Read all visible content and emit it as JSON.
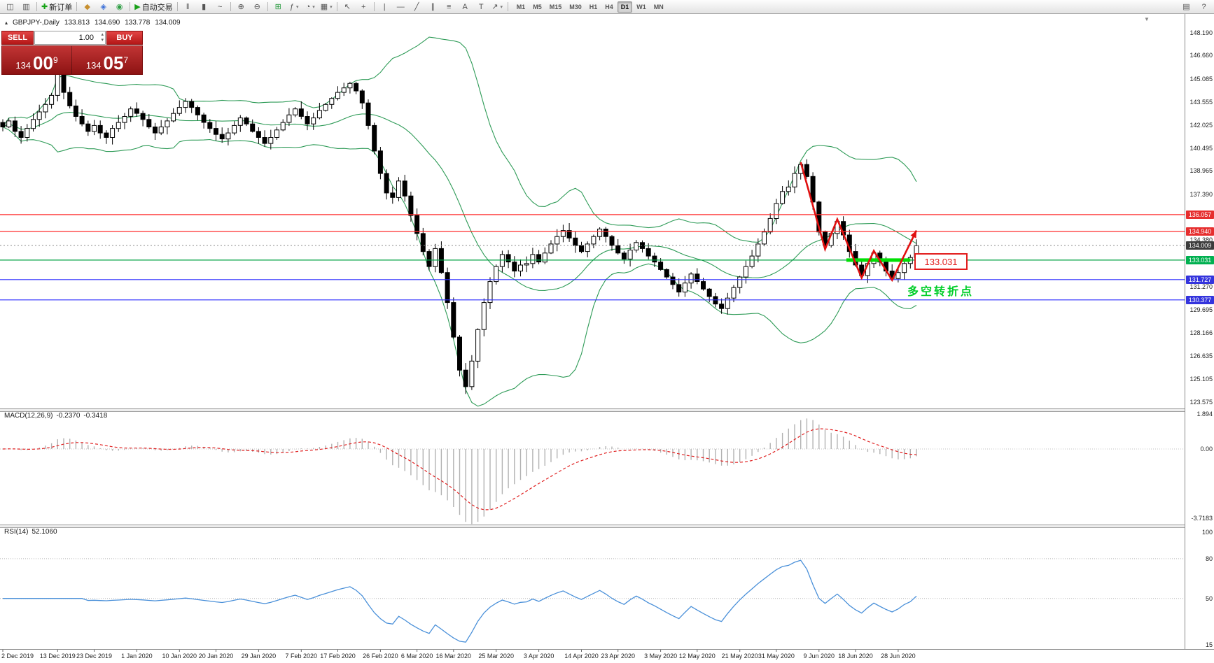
{
  "toolbar": {
    "left_buttons": [
      {
        "name": "new-chart-button",
        "glyph": "◫"
      },
      {
        "name": "chart-profiles-button",
        "glyph": "▥"
      },
      {
        "sep": true
      },
      {
        "name": "new-order-button",
        "glyph": "✚",
        "glyph_color": "#17a317",
        "label": "新订单"
      },
      {
        "sep": true
      },
      {
        "name": "market-watch-button",
        "glyph": "◆",
        "glyph_color": "#c78f2f"
      },
      {
        "name": "data-window-button",
        "glyph": "◈",
        "glyph_color": "#3a6fd8"
      },
      {
        "name": "navigator-button",
        "glyph": "◉",
        "glyph_color": "#2e9e44"
      },
      {
        "sep": true
      },
      {
        "name": "autotrading-button",
        "glyph": "▶",
        "glyph_color": "#18a018",
        "label": "自动交易"
      },
      {
        "sep": true
      },
      {
        "name": "bar-chart-button",
        "glyph": "‖"
      },
      {
        "name": "candlestick-chart-button",
        "glyph": "▮"
      },
      {
        "name": "line-chart-button",
        "glyph": "~"
      },
      {
        "sep": true
      },
      {
        "name": "zoom-in-button",
        "glyph": "⊕"
      },
      {
        "name": "zoom-out-button",
        "glyph": "⊖"
      },
      {
        "sep": true
      },
      {
        "name": "tile-windows-button",
        "glyph": "⊞",
        "glyph_color": "#2e9e44"
      },
      {
        "name": "indicators-button",
        "glyph": "ƒ",
        "dropdown": true
      },
      {
        "name": "periods-button",
        "glyph": "◔",
        "dropdown": true
      },
      {
        "name": "templates-button",
        "glyph": "▦",
        "dropdown": true
      },
      {
        "sep": true
      },
      {
        "name": "cursor-button",
        "glyph": "↖"
      },
      {
        "name": "crosshair-button",
        "glyph": "+"
      },
      {
        "sep": true
      },
      {
        "name": "vertical-line-button",
        "glyph": "|"
      },
      {
        "name": "horizontal-line-button",
        "glyph": "—"
      },
      {
        "name": "trendline-button",
        "glyph": "╱"
      },
      {
        "name": "equidistant-channel-button",
        "glyph": "∥"
      },
      {
        "name": "fibonacci-button",
        "glyph": "≡"
      },
      {
        "name": "text-button",
        "glyph": "A"
      },
      {
        "name": "text-label-button",
        "glyph": "T"
      },
      {
        "name": "arrows-button",
        "glyph": "↗",
        "dropdown": true
      },
      {
        "sep": true
      }
    ],
    "timeframes": [
      "M1",
      "M5",
      "M15",
      "M30",
      "H1",
      "H4",
      "D1",
      "W1",
      "MN"
    ],
    "active_timeframe": "D1",
    "right_buttons": [
      {
        "name": "toolbar-options-button",
        "glyph": "▤"
      },
      {
        "name": "help-button",
        "glyph": "?"
      }
    ]
  },
  "symbol_bar": {
    "symbol": "GBPJPY-,Daily",
    "open": "133.813",
    "high": "134.690",
    "low": "133.778",
    "close": "134.009"
  },
  "trade_panel": {
    "sell_label": "SELL",
    "buy_label": "BUY",
    "lot_size": "1.00",
    "sell_price_big": "134",
    "sell_price_pips": "00",
    "sell_price_sup": "9",
    "buy_price_big": "134",
    "buy_price_pips": "05",
    "buy_price_sup": "7"
  },
  "macd": {
    "title": "MACD(12,26,9)",
    "value": "-0.2370",
    "signal_value": "-0.3418",
    "scale": [
      {
        "label": "1.894",
        "value": 1.894
      },
      {
        "label": "0.00",
        "value": 0
      },
      {
        "label": "-3.7183",
        "value": -3.7183
      }
    ]
  },
  "rsi": {
    "title": "RSI(14)",
    "value": "52.1060",
    "scale": [
      {
        "label": "100",
        "value": 100
      },
      {
        "label": "80",
        "value": 80
      },
      {
        "label": "50",
        "value": 50
      },
      {
        "label": "15",
        "value": 15
      }
    ],
    "grid_levels": [
      80,
      50
    ]
  },
  "price_scale": {
    "regular": [
      "148.190",
      "146.660",
      "145.085",
      "143.555",
      "142.025",
      "140.495",
      "138.965",
      "137.390",
      "134.380",
      "131.270",
      "129.695",
      "128.166",
      "126.635",
      "125.105",
      "123.575"
    ],
    "tags": [
      {
        "label": "136.057",
        "price": 136.057,
        "bg": "#e62e2e"
      },
      {
        "label": "134.940",
        "price": 134.94,
        "bg": "#e62e2e"
      },
      {
        "label": "134.009",
        "price": 134.009,
        "bg": "#3c3c3c"
      },
      {
        "label": "133.031",
        "price": 133.031,
        "bg": "#00b050"
      },
      {
        "label": "131.727",
        "price": 131.727,
        "bg": "#3434dd"
      },
      {
        "label": "130.377",
        "price": 130.377,
        "bg": "#3434dd"
      }
    ]
  },
  "annotations": {
    "level_label": "133.031",
    "turning_point": "多空转折点",
    "zigzag": [
      {
        "bar": 131,
        "price": 139.55
      },
      {
        "bar": 135,
        "price": 133.75
      },
      {
        "bar": 137,
        "price": 135.75
      },
      {
        "bar": 141,
        "price": 131.85
      },
      {
        "bar": 143,
        "price": 133.65
      },
      {
        "bar": 146,
        "price": 131.7
      },
      {
        "bar": 150,
        "price": 135.0
      }
    ],
    "green_segment": {
      "from_bar": 138.5,
      "to_bar": 149,
      "price": 133.031
    }
  },
  "date_axis": [
    {
      "label": "2 Dec 2019",
      "bar": 0
    },
    {
      "label": "13 Dec 2019",
      "bar": 9
    },
    {
      "label": "23 Dec 2019",
      "bar": 15
    },
    {
      "label": "1 Jan 2020",
      "bar": 22
    },
    {
      "label": "10 Jan 2020",
      "bar": 29
    },
    {
      "label": "20 Jan 2020",
      "bar": 35
    },
    {
      "label": "29 Jan 2020",
      "bar": 42
    },
    {
      "label": "7 Feb 2020",
      "bar": 49
    },
    {
      "label": "17 Feb 2020",
      "bar": 55
    },
    {
      "label": "26 Feb 2020",
      "bar": 62
    },
    {
      "label": "6 Mar 2020",
      "bar": 68
    },
    {
      "label": "16 Mar 2020",
      "bar": 74
    },
    {
      "label": "25 Mar 2020",
      "bar": 81
    },
    {
      "label": "3 Apr 2020",
      "bar": 88
    },
    {
      "label": "14 Apr 2020",
      "bar": 95
    },
    {
      "label": "23 Apr 2020",
      "bar": 101
    },
    {
      "label": "3 May 2020",
      "bar": 108
    },
    {
      "label": "12 May 2020",
      "bar": 114
    },
    {
      "label": "21 May 2020",
      "bar": 121
    },
    {
      "label": "31 May 2020",
      "bar": 127
    },
    {
      "label": "9 Jun 2020",
      "bar": 134
    },
    {
      "label": "18 Jun 2020",
      "bar": 140
    },
    {
      "label": "28 Jun 2020",
      "bar": 147
    }
  ],
  "chart_data": {
    "type": "candlestick",
    "symbol": "GBPJPY",
    "timeframe": "Daily",
    "price_range": [
      123.575,
      148.19
    ],
    "closes": [
      141.9,
      142.3,
      141.6,
      141.2,
      141.8,
      142.4,
      142.9,
      143.4,
      144.0,
      145.5,
      144.2,
      143.3,
      142.6,
      142.1,
      141.6,
      142.0,
      141.5,
      141.2,
      141.8,
      142.2,
      142.6,
      143.1,
      142.8,
      142.4,
      141.9,
      141.5,
      141.9,
      142.3,
      142.8,
      143.2,
      143.6,
      143.2,
      142.7,
      142.2,
      141.8,
      141.4,
      141.1,
      141.5,
      142.0,
      142.5,
      142.1,
      141.6,
      141.2,
      140.8,
      141.2,
      141.7,
      142.2,
      142.7,
      143.1,
      142.6,
      142.1,
      142.5,
      143.0,
      143.4,
      143.8,
      144.2,
      144.5,
      144.8,
      144.3,
      143.5,
      142.0,
      140.3,
      138.8,
      137.5,
      137.2,
      138.3,
      137.3,
      136.0,
      134.8,
      133.6,
      132.6,
      133.8,
      132.2,
      130.2,
      127.9,
      125.7,
      124.6,
      126.3,
      128.4,
      130.2,
      131.6,
      132.6,
      133.4,
      132.9,
      132.3,
      132.7,
      132.8,
      133.4,
      132.9,
      133.5,
      134.1,
      134.6,
      135.0,
      134.5,
      134.0,
      133.6,
      134.1,
      134.6,
      135.1,
      134.6,
      134.0,
      133.5,
      133.1,
      133.7,
      134.2,
      133.8,
      133.3,
      132.9,
      132.4,
      131.9,
      131.4,
      130.9,
      131.5,
      132.1,
      131.6,
      131.1,
      130.6,
      130.1,
      129.8,
      130.5,
      131.2,
      131.9,
      132.6,
      133.3,
      134.1,
      134.9,
      135.8,
      136.8,
      137.6,
      137.9,
      138.8,
      139.4,
      138.6,
      136.9,
      134.9,
      134.0,
      134.8,
      135.6,
      134.7,
      133.6,
      132.7,
      132.0,
      132.8,
      133.5,
      132.9,
      132.3,
      131.8,
      132.2,
      132.8,
      133.2,
      134.0
    ],
    "bollinger": {
      "period": 20,
      "deviation": 2
    },
    "levels": [
      {
        "price": 136.057,
        "color": "#ff2d2d"
      },
      {
        "price": 134.94,
        "color": "#ff2d2d"
      },
      {
        "price": 133.031,
        "color": "#00a143"
      },
      {
        "price": 131.727,
        "color": "#2d2dff"
      },
      {
        "price": 130.377,
        "color": "#2d2dff"
      }
    ],
    "bid_line": {
      "price": 134.009,
      "color": "#8a8a8a"
    },
    "colors": {
      "bull": "#ffffff",
      "bear": "#000000",
      "wick": "#000000",
      "bands": "#2e9b57",
      "macd_hist": "#b2b2b2",
      "macd_signal": "#e02020",
      "rsi_line": "#4a90d9",
      "zigzag": "#e01010",
      "green_segment": "#00e004"
    }
  }
}
